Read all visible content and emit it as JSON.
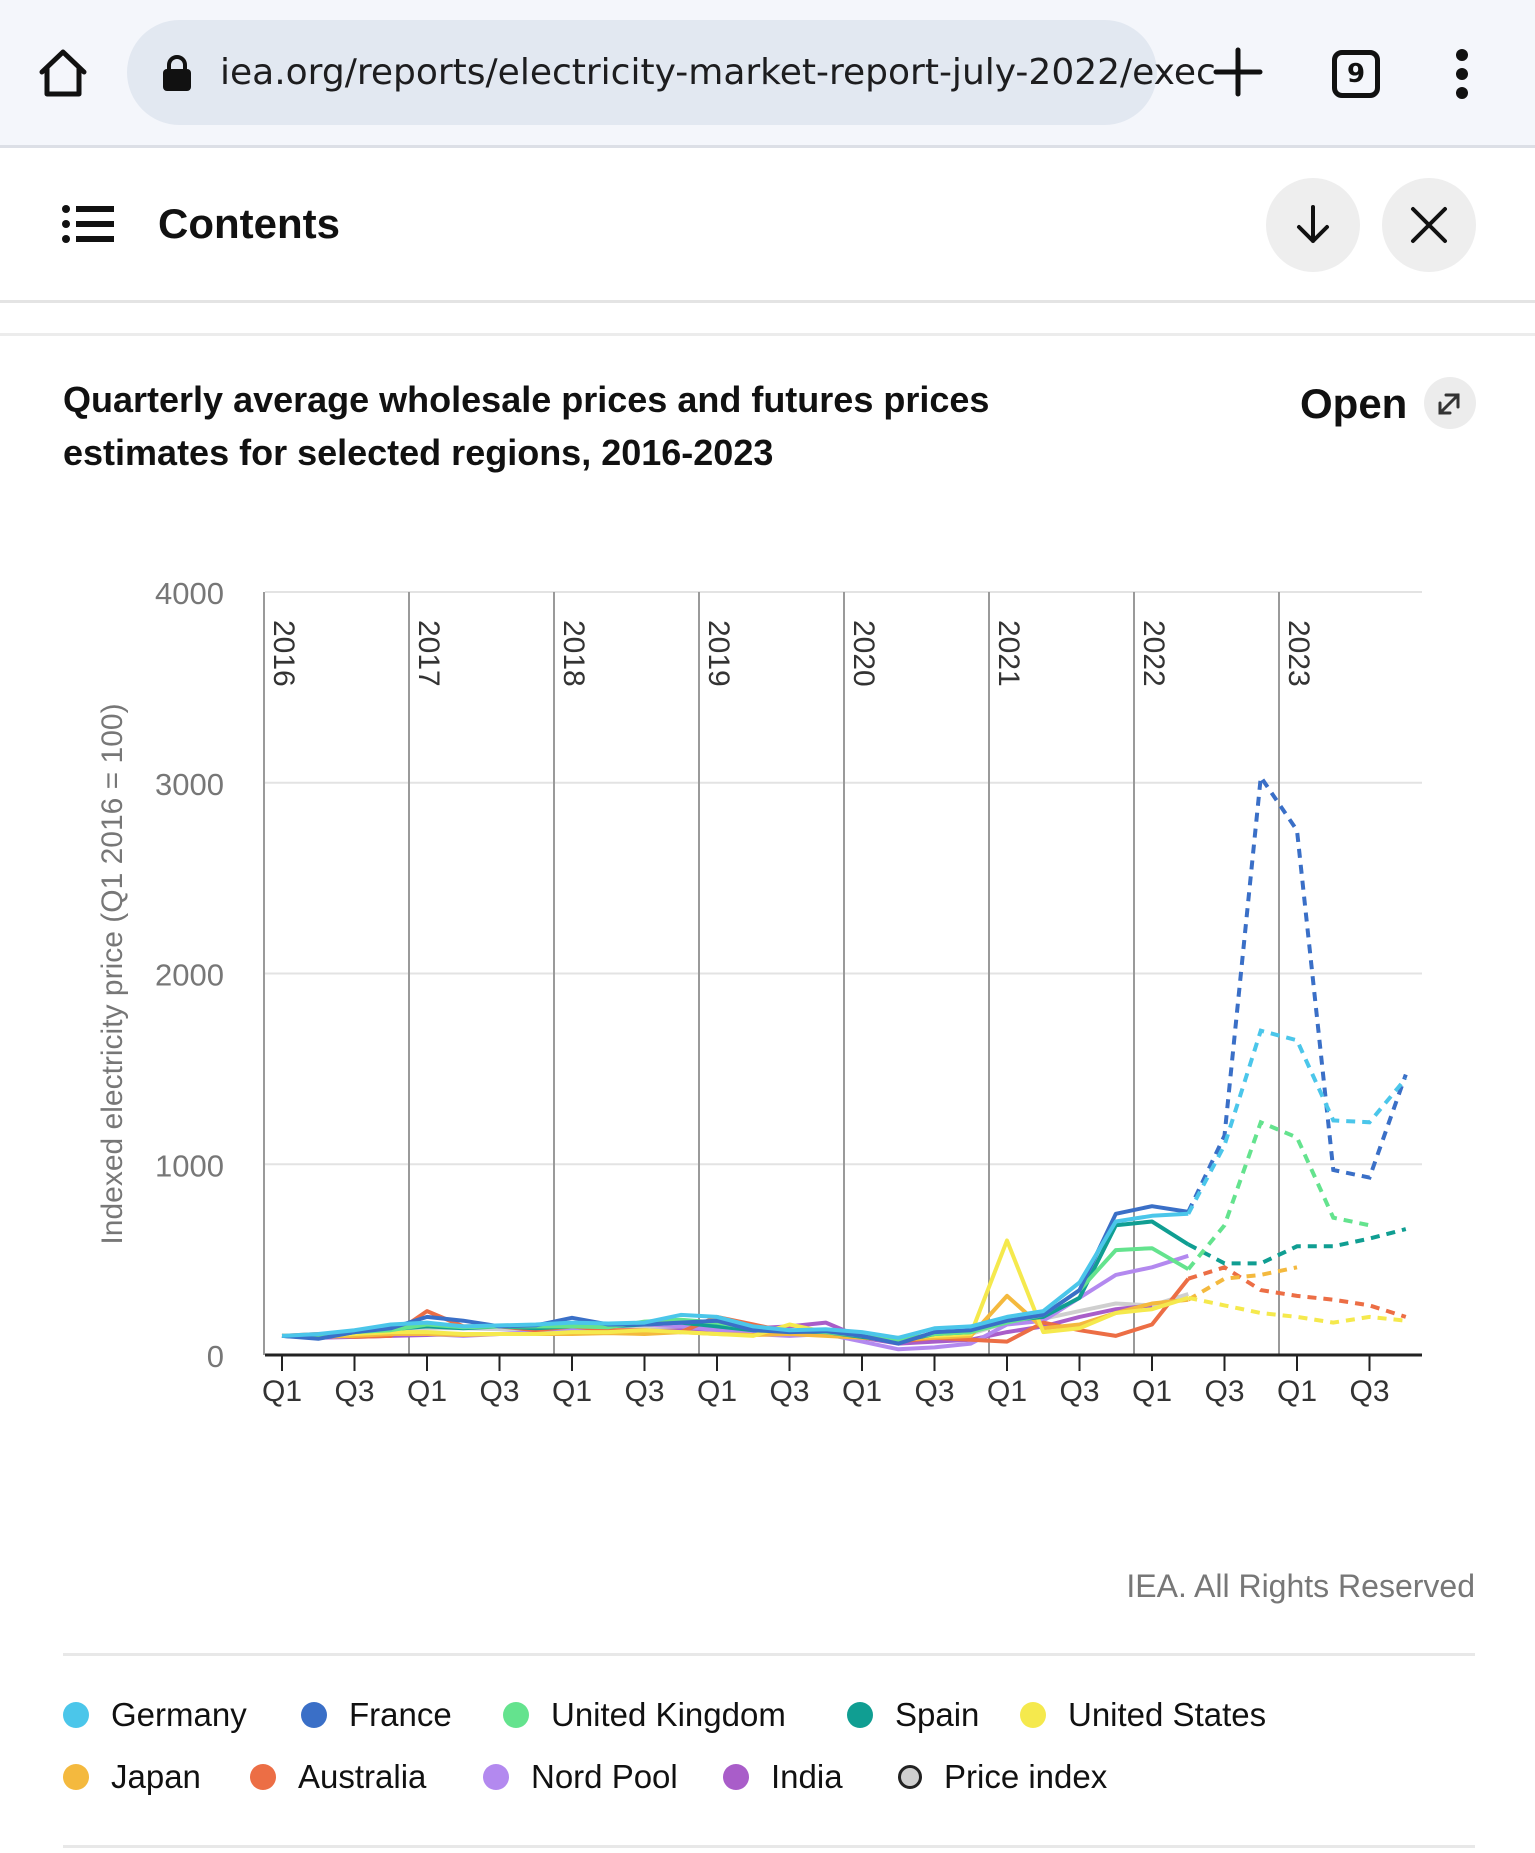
{
  "browser": {
    "url": "iea.org/reports/electricity-market-report-july-2022/exec",
    "tab_count": "9"
  },
  "header": {
    "contents_label": "Contents"
  },
  "figure": {
    "title": "Quarterly average wholesale prices and futures prices estimates for selected regions, 2016-2023",
    "open_label": "Open",
    "rights": "IEA. All Rights Reserved"
  },
  "chart_data": {
    "type": "line",
    "ylabel": "Indexed electricity price (Q1 2016 = 100)",
    "ylim": [
      0,
      4000
    ],
    "yticks": [
      0,
      1000,
      2000,
      3000,
      4000
    ],
    "x": [
      "2016 Q1",
      "2016 Q2",
      "2016 Q3",
      "2016 Q4",
      "2017 Q1",
      "2017 Q2",
      "2017 Q3",
      "2017 Q4",
      "2018 Q1",
      "2018 Q2",
      "2018 Q3",
      "2018 Q4",
      "2019 Q1",
      "2019 Q2",
      "2019 Q3",
      "2019 Q4",
      "2020 Q1",
      "2020 Q2",
      "2020 Q3",
      "2020 Q4",
      "2021 Q1",
      "2021 Q2",
      "2021 Q3",
      "2021 Q4",
      "2022 Q1",
      "2022 Q2",
      "2022 Q3",
      "2022 Q4",
      "2023 Q1",
      "2023 Q2",
      "2023 Q3",
      "2023 Q4"
    ],
    "x_tick_labels": [
      "Q1",
      "Q3",
      "Q1",
      "Q3",
      "Q1",
      "Q3",
      "Q1",
      "Q3",
      "Q1",
      "Q3",
      "Q1",
      "Q3",
      "Q1",
      "Q3",
      "Q1",
      "Q3"
    ],
    "year_labels": [
      "2016",
      "2017",
      "2018",
      "2019",
      "2020",
      "2021",
      "2022",
      "2023"
    ],
    "grid": true,
    "legend_position": "bottom",
    "series": [
      {
        "name": "Germany",
        "color": "#4bc6ea",
        "solid_to": 25,
        "values": [
          100,
          110,
          130,
          160,
          170,
          150,
          155,
          160,
          170,
          165,
          170,
          210,
          200,
          150,
          130,
          135,
          120,
          90,
          140,
          150,
          200,
          230,
          380,
          700,
          730,
          740,
          1100,
          1700,
          1650,
          1230,
          1220,
          1450
        ]
      },
      {
        "name": "France",
        "color": "#3a6fc7",
        "solid_to": 25,
        "values": [
          100,
          85,
          120,
          140,
          200,
          180,
          150,
          155,
          195,
          160,
          160,
          170,
          180,
          130,
          120,
          125,
          100,
          60,
          120,
          130,
          180,
          210,
          340,
          740,
          780,
          750,
          1150,
          3030,
          2750,
          970,
          930,
          1470
        ]
      },
      {
        "name": "United Kingdom",
        "color": "#64e38e",
        "solid_to": 25,
        "values": [
          100,
          95,
          120,
          130,
          160,
          145,
          150,
          150,
          150,
          145,
          175,
          185,
          170,
          140,
          130,
          120,
          100,
          80,
          110,
          120,
          170,
          210,
          340,
          550,
          560,
          450,
          680,
          1220,
          1140,
          720,
          680,
          null
        ]
      },
      {
        "name": "Spain",
        "color": "#109e92",
        "solid_to": 25,
        "values": [
          100,
          90,
          120,
          135,
          150,
          140,
          150,
          140,
          150,
          150,
          160,
          170,
          150,
          130,
          125,
          120,
          95,
          70,
          110,
          120,
          180,
          200,
          300,
          680,
          700,
          580,
          480,
          480,
          570,
          570,
          610,
          660
        ]
      },
      {
        "name": "United States",
        "color": "#f5e94d",
        "solid_to": 25,
        "values": [
          100,
          100,
          110,
          120,
          120,
          110,
          110,
          110,
          120,
          120,
          130,
          120,
          110,
          100,
          160,
          120,
          100,
          90,
          100,
          110,
          600,
          120,
          140,
          220,
          240,
          300,
          260,
          220,
          200,
          170,
          200,
          180
        ]
      },
      {
        "name": "Japan",
        "color": "#f4b93e",
        "solid_to": 25,
        "values": [
          100,
          95,
          100,
          110,
          110,
          105,
          110,
          110,
          110,
          115,
          110,
          120,
          110,
          105,
          110,
          100,
          90,
          80,
          90,
          100,
          310,
          140,
          160,
          220,
          270,
          290,
          400,
          420,
          460,
          null,
          null,
          null
        ]
      },
      {
        "name": "Australia",
        "color": "#ec6e45",
        "solid_to": 25,
        "values": [
          100,
          110,
          95,
          100,
          230,
          150,
          150,
          130,
          150,
          130,
          130,
          120,
          200,
          160,
          120,
          110,
          100,
          70,
          90,
          80,
          70,
          170,
          130,
          100,
          160,
          400,
          460,
          340,
          310,
          290,
          260,
          200
        ]
      },
      {
        "name": "Nord Pool",
        "color": "#b389ef",
        "solid_to": 25,
        "values": [
          100,
          95,
          100,
          110,
          110,
          100,
          110,
          120,
          130,
          150,
          160,
          150,
          130,
          110,
          100,
          110,
          70,
          30,
          40,
          60,
          160,
          180,
          300,
          420,
          460,
          520,
          null,
          null,
          null,
          null,
          null,
          null
        ]
      },
      {
        "name": "India",
        "color": "#a95dc9",
        "solid_to": 25,
        "values": [
          100,
          90,
          95,
          100,
          105,
          110,
          110,
          110,
          115,
          120,
          125,
          130,
          130,
          140,
          150,
          170,
          90,
          60,
          70,
          80,
          120,
          150,
          200,
          240,
          260,
          null,
          null,
          null,
          null,
          null,
          null,
          null
        ]
      },
      {
        "name": "Price index",
        "color": "#cfcfcf",
        "solid_to": 25,
        "values": [
          100,
          100,
          110,
          120,
          140,
          140,
          135,
          135,
          140,
          140,
          140,
          145,
          140,
          130,
          125,
          130,
          100,
          80,
          100,
          110,
          170,
          190,
          230,
          270,
          260,
          320,
          null,
          null,
          null,
          null,
          null,
          null
        ]
      }
    ]
  }
}
